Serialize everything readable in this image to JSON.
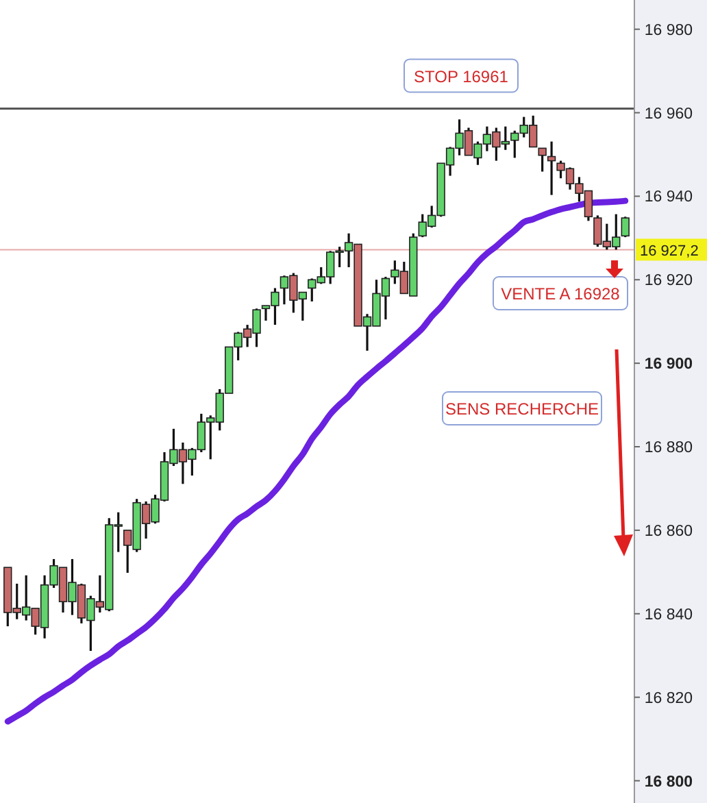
{
  "chart_data": {
    "type": "candlestick",
    "tick_labels": "y",
    "categories": [
      null,
      null,
      null,
      null,
      null,
      null,
      null,
      null,
      null,
      null,
      null,
      null,
      null,
      null,
      null,
      null,
      null,
      null,
      null,
      null,
      null,
      null,
      null,
      null,
      null,
      null,
      null,
      null,
      null,
      null,
      null,
      null,
      null,
      null,
      null,
      null,
      null,
      null,
      null,
      null,
      null,
      null,
      null,
      null,
      null,
      null,
      null,
      null,
      null,
      null,
      null,
      null,
      null,
      null,
      null,
      null,
      null,
      null,
      null,
      null,
      null,
      null,
      null,
      null,
      null,
      null,
      null,
      null
    ],
    "ohlc": [
      [
        16851.1,
        16851.1,
        16837,
        16840.3
      ],
      [
        16841.3,
        16847.2,
        16838.7,
        16840.3
      ],
      [
        16839.7,
        16849.2,
        16838.4,
        16841.6
      ],
      [
        16841.3,
        16841.3,
        16835,
        16837
      ],
      [
        16836.7,
        16849.2,
        16834.1,
        16846.9
      ],
      [
        16846.9,
        16853.1,
        16846.2,
        16851.5
      ],
      [
        16851.1,
        16851.1,
        16840.3,
        16842.9
      ],
      [
        16842.9,
        16853.1,
        16839.7,
        16847.5
      ],
      [
        16846.9,
        16847.2,
        16837.7,
        16839
      ],
      [
        16838.4,
        16844.3,
        16831.1,
        16843.6
      ],
      [
        16842.9,
        16849.2,
        16840.3,
        16841.6
      ],
      [
        16841,
        16862.9,
        16840.6,
        16861.3
      ],
      [
        16861,
        16864.3,
        16854.8,
        16861.3
      ],
      [
        16860,
        16860,
        16849.8,
        16856.4
      ],
      [
        16855.4,
        16867.5,
        16854.8,
        16866.6
      ],
      [
        16866.2,
        16866.9,
        16858,
        16861.6
      ],
      [
        16862,
        16868.5,
        16861.6,
        16867.5
      ],
      [
        16867.2,
        16878.7,
        16866.9,
        16876.4
      ],
      [
        16876,
        16884.3,
        16875.4,
        16879.3
      ],
      [
        16879.3,
        16881,
        16871.1,
        16876.4
      ],
      [
        16877,
        16879.7,
        16873.1,
        16879.3
      ],
      [
        16879.3,
        16887.9,
        16878.7,
        16885.9
      ],
      [
        16885.9,
        16887.5,
        16877,
        16886.9
      ],
      [
        16885.9,
        16893.8,
        16883.9,
        16892.8
      ],
      [
        16892.8,
        16903.9,
        16892.8,
        16903.9
      ],
      [
        16903.9,
        16907.5,
        16900.7,
        16907.2
      ],
      [
        16908.2,
        16909.2,
        16903.9,
        16906.2
      ],
      [
        16907.2,
        16913.1,
        16903.9,
        16912.8
      ],
      [
        16913.1,
        16913.8,
        16910.2,
        16913.8
      ],
      [
        16913.8,
        16918,
        16909.2,
        16917
      ],
      [
        16918,
        16921,
        16914.1,
        16920.7
      ],
      [
        16921,
        16921.6,
        16912.1,
        16915.1
      ],
      [
        16915.4,
        16917,
        16910.2,
        16917
      ],
      [
        16918,
        16920.3,
        16914.8,
        16920
      ],
      [
        16919.3,
        16923,
        16919,
        16920.7
      ],
      [
        16920.7,
        16926.9,
        16919,
        16926.6
      ],
      [
        16926.6,
        16927.9,
        16923,
        16926.9
      ],
      [
        16926.9,
        16931.1,
        16923,
        16928.9
      ],
      [
        16928.5,
        16928.5,
        16908.9,
        16908.9
      ],
      [
        16908.9,
        16911.8,
        16903,
        16911.1
      ],
      [
        16908.9,
        16920,
        16908.9,
        16916.7
      ],
      [
        16916.1,
        16920.7,
        16910.5,
        16920.3
      ],
      [
        16920.7,
        16924.6,
        16919,
        16922.3
      ],
      [
        16922,
        16924.3,
        16916.7,
        16916.7
      ],
      [
        16916.1,
        16931.1,
        16916.1,
        16930.2
      ],
      [
        16930.5,
        16935.7,
        16930.2,
        16933.8
      ],
      [
        16932.8,
        16937.7,
        16932.5,
        16935.4
      ],
      [
        16935.4,
        16947.9,
        16935.1,
        16947.9
      ],
      [
        16947.5,
        16951.8,
        16944.9,
        16951.5
      ],
      [
        16951.5,
        16958.4,
        16949.8,
        16955.1
      ],
      [
        16955.7,
        16956.4,
        16949.8,
        16949.8
      ],
      [
        16949.2,
        16953.1,
        16947.5,
        16952.5
      ],
      [
        16952.5,
        16956.7,
        16950.8,
        16954.8
      ],
      [
        16955.4,
        16956.4,
        16948.5,
        16951.8
      ],
      [
        16952.5,
        16956.7,
        16951.1,
        16953.1
      ],
      [
        16953.4,
        16955.7,
        16949.2,
        16955.1
      ],
      [
        16955.1,
        16959,
        16954.1,
        16957
      ],
      [
        16957,
        16959.3,
        16951.8,
        16951.8
      ],
      [
        16951.5,
        16951.5,
        16945.9,
        16949.8
      ],
      [
        16949.5,
        16953.1,
        16940.3,
        16948.5
      ],
      [
        16947.9,
        16948.5,
        16944.3,
        16946.2
      ],
      [
        16946.6,
        16946.9,
        16941.6,
        16943
      ],
      [
        16943,
        16944.6,
        16938.7,
        16940.7
      ],
      [
        16941.3,
        16941.3,
        16934.1,
        16935.1
      ],
      [
        16934.8,
        16935.4,
        16927.9,
        16928.5
      ],
      [
        16929.2,
        16933.4,
        16927.2,
        16927.9
      ],
      [
        16927.9,
        16935.7,
        16927.2,
        16930.2
      ],
      [
        16930.5,
        16935.1,
        16930.2,
        16934.8
      ]
    ],
    "series": [
      {
        "type": "line",
        "color": "#6a22e0",
        "values": [
          16814.2,
          16815.5,
          16816.8,
          16818.5,
          16820.0,
          16821.3,
          16822.8,
          16824.2,
          16826.0,
          16827.6,
          16829.0,
          16830.3,
          16832.2,
          16833.6,
          16835.2,
          16836.8,
          16838.8,
          16841.1,
          16843.8,
          16846.1,
          16848.8,
          16851.8,
          16854.4,
          16857.3,
          16860.3,
          16862.6,
          16864.0,
          16865.7,
          16867.2,
          16869.4,
          16872.2,
          16875.4,
          16878.2,
          16881.9,
          16884.7,
          16887.8,
          16890.1,
          16892.1,
          16894.8,
          16896.8,
          16898.7,
          16900.5,
          16902.4,
          16904.3,
          16906.3,
          16908.4,
          16911.2,
          16913.5,
          16916.3,
          16919.1,
          16921.5,
          16924.2,
          16926.3,
          16928.0,
          16930.0,
          16931.8,
          16933.8,
          16934.5,
          16935.4,
          16936.2,
          16936.9,
          16937.4,
          16937.9,
          16938.4,
          16938.5,
          16938.6,
          16938.7,
          16938.9
        ]
      }
    ],
    "ylim": [
      16795,
      16987
    ],
    "yticks": [
      {
        "value": 16800,
        "label": "16 800"
      },
      {
        "value": 16820,
        "label": "16 820"
      },
      {
        "value": 16840,
        "label": "16 840"
      },
      {
        "value": 16860,
        "label": "16 860"
      },
      {
        "value": 16880,
        "label": "16 880"
      },
      {
        "value": 16900,
        "label": "16 900"
      },
      {
        "value": 16920,
        "label": "16 920"
      },
      {
        "value": 16940,
        "label": "16 940"
      },
      {
        "value": 16960,
        "label": "16 960"
      },
      {
        "value": 16980,
        "label": "16 980"
      }
    ],
    "ref_lines": [
      {
        "axis": "y",
        "value": 16961,
        "label": "STOP 16961",
        "color": "#555555"
      },
      {
        "axis": "y",
        "value": 16927.2,
        "label": "16 927,2",
        "color": "#e8a8a8"
      }
    ],
    "annotations": [
      "VENTE A 16928",
      "SENS RECHERCHE"
    ]
  }
}
